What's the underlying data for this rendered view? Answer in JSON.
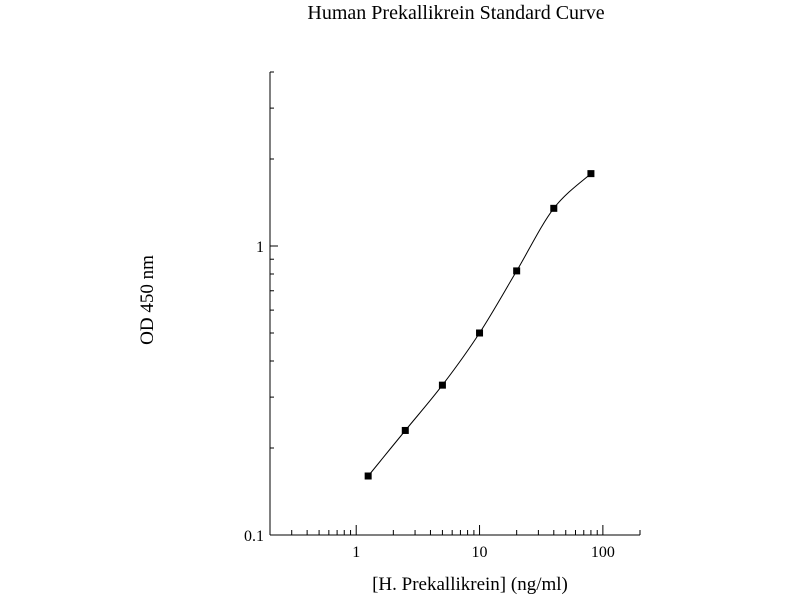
{
  "chart_data": {
    "type": "scatter",
    "title": "Human Prekallikrein Standard Curve",
    "xlabel": "[H. Prekallikrein] (ng/ml)",
    "ylabel": "OD 450 nm",
    "x_scale": "log",
    "y_scale": "log",
    "xlim": [
      0.2,
      200
    ],
    "ylim": [
      0.1,
      4.0
    ],
    "x_ticks": [
      {
        "value": 1,
        "label": "1"
      },
      {
        "value": 10,
        "label": "10"
      },
      {
        "value": 100,
        "label": "100"
      }
    ],
    "y_ticks": [
      {
        "value": 0.1,
        "label": "0.1"
      },
      {
        "value": 1,
        "label": "1"
      }
    ],
    "grid": false,
    "series": [
      {
        "x": [
          1.25,
          2.5,
          5,
          10,
          20,
          40,
          80
        ],
        "y": [
          0.16,
          0.23,
          0.33,
          0.5,
          0.82,
          1.35,
          1.78
        ],
        "marker": "square",
        "line": "smooth",
        "color": "#000000"
      }
    ]
  }
}
